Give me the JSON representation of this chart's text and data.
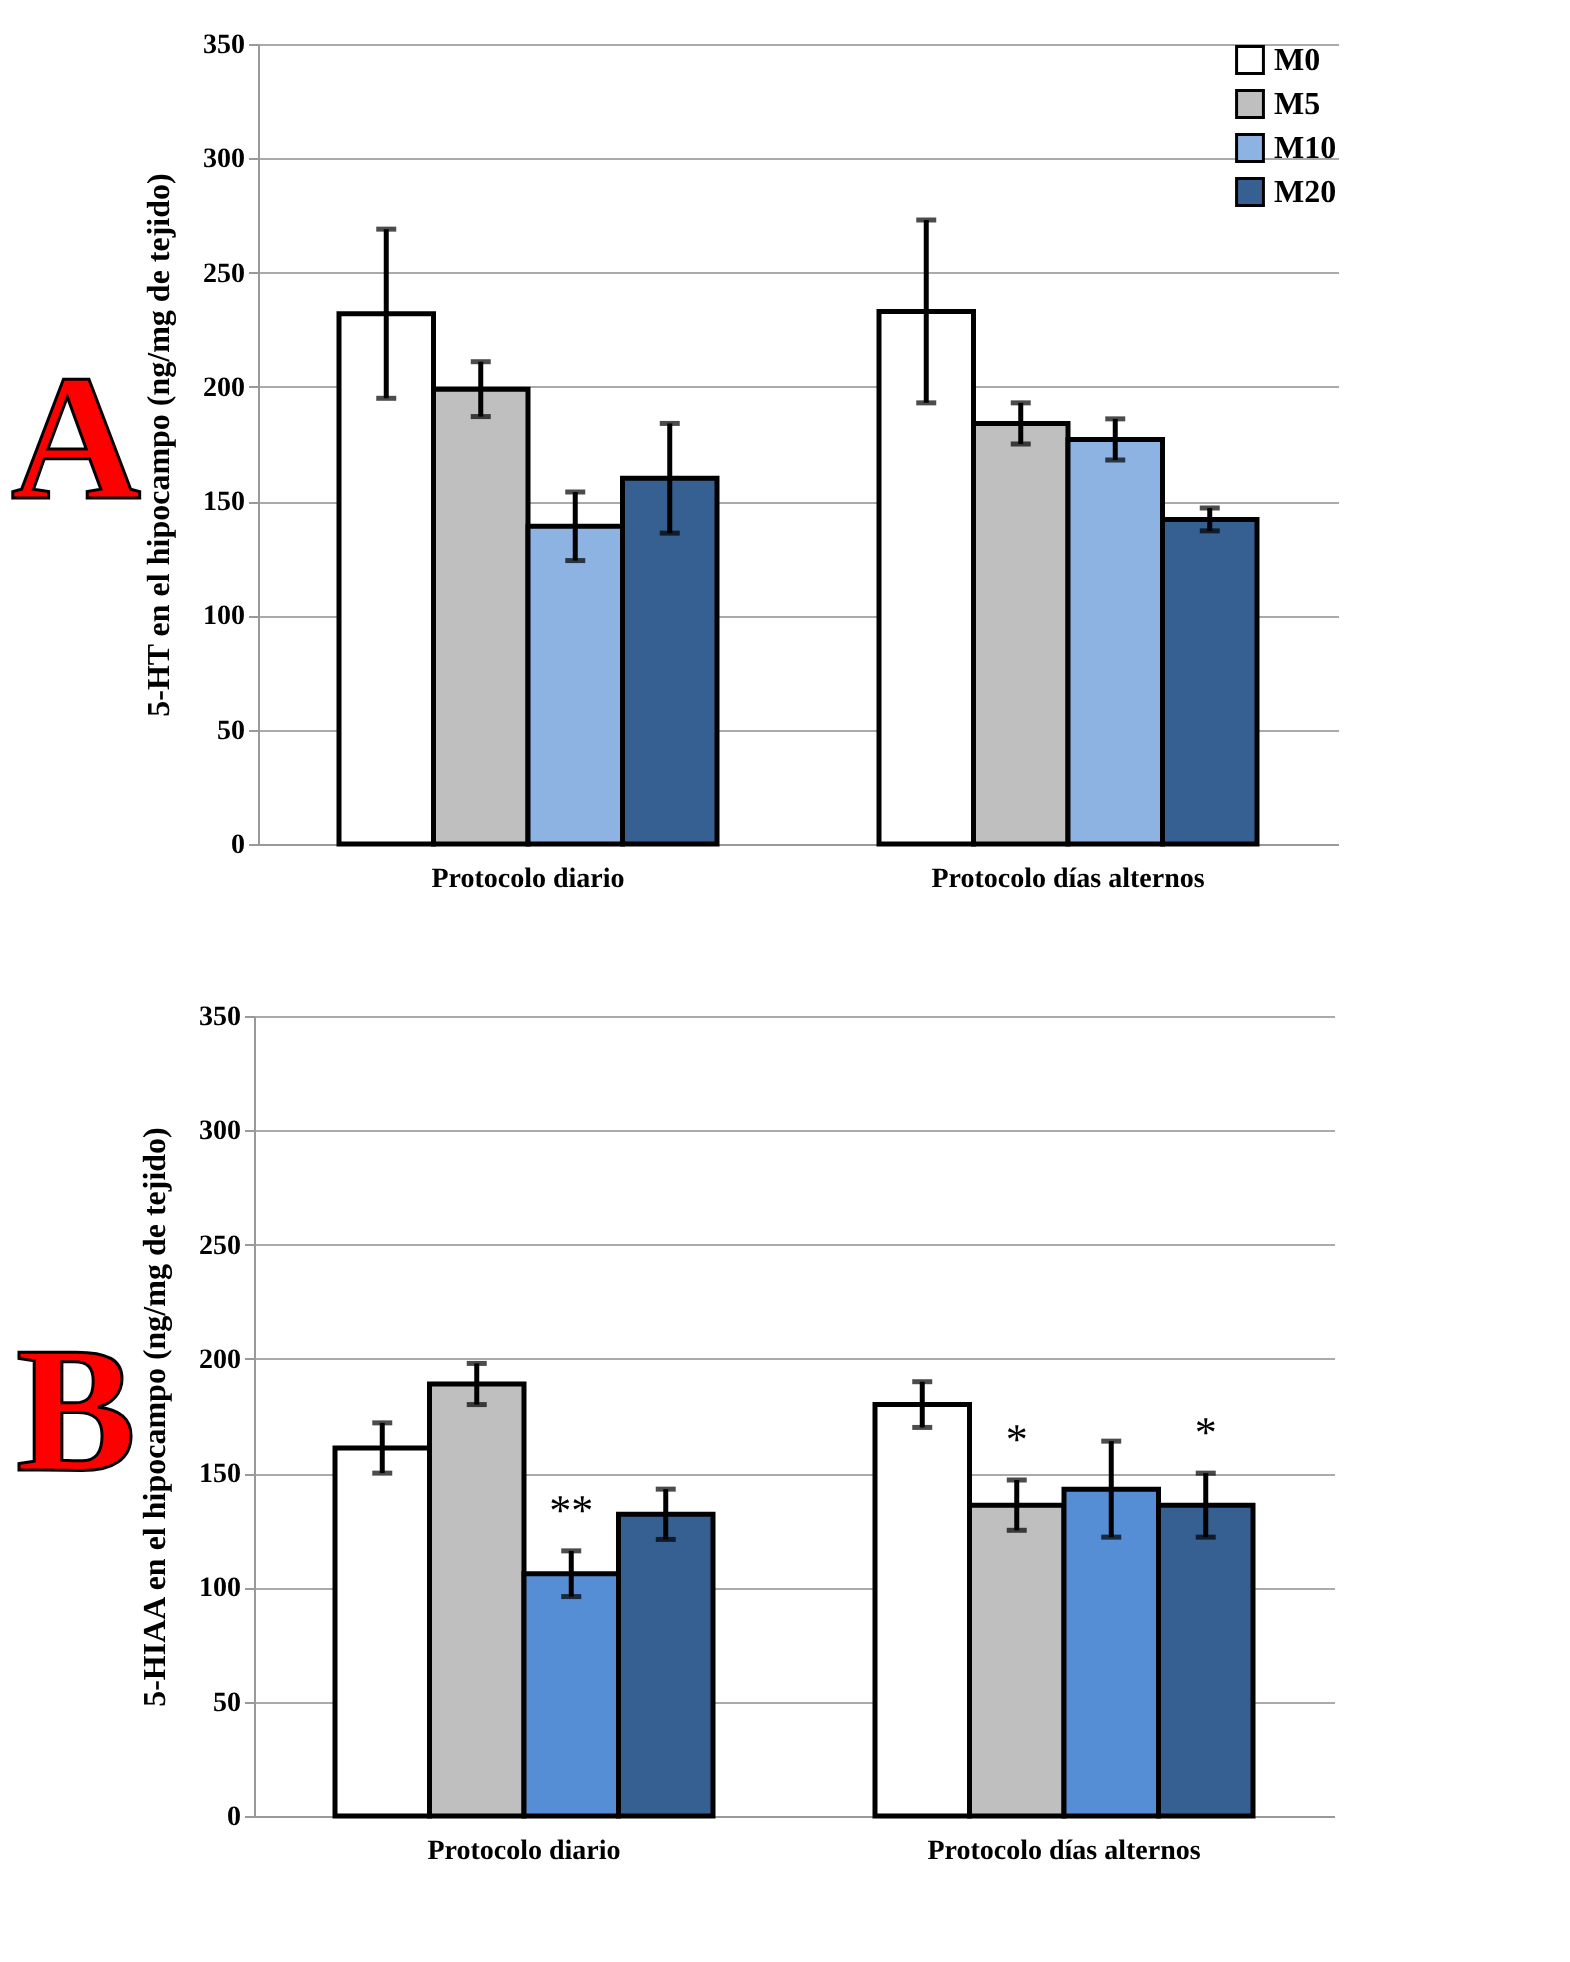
{
  "chart_data": [
    {
      "type": "bar",
      "annotations": [
        "A"
      ],
      "ylabel": "5-HT en el hipocampo (ng/mg de tejido)",
      "categories": [
        "Protocolo diario",
        "Protocolo días alternos"
      ],
      "ylim": [
        0,
        350
      ],
      "yticks": [
        0,
        50,
        100,
        150,
        200,
        250,
        300,
        350
      ],
      "grid": "y",
      "legend": "top right",
      "series": [
        {
          "name": "M0",
          "color": "#ffffff",
          "values": [
            232,
            233
          ],
          "errors": [
            37,
            40
          ]
        },
        {
          "name": "M5",
          "color": "#bfbfbf",
          "values": [
            199,
            184
          ],
          "errors": [
            12,
            9
          ]
        },
        {
          "name": "M10",
          "color": "#8db3e2",
          "values": [
            139,
            177
          ],
          "errors": [
            15,
            9
          ]
        },
        {
          "name": "M20",
          "color": "#376092",
          "values": [
            160,
            142
          ],
          "errors": [
            24,
            5
          ]
        }
      ]
    },
    {
      "type": "bar",
      "annotations": [
        "B"
      ],
      "ylabel": "5-HIAA en el hipocampo (ng/mg de tejido)",
      "categories": [
        "Protocolo diario",
        "Protocolo días alternos"
      ],
      "ylim": [
        0,
        350
      ],
      "yticks": [
        0,
        50,
        100,
        150,
        200,
        250,
        300,
        350
      ],
      "grid": "y",
      "series": [
        {
          "color": "#ffffff",
          "values": [
            161,
            180
          ],
          "errors": [
            11,
            10
          ]
        },
        {
          "color": "#bfbfbf",
          "values": [
            189,
            136
          ],
          "errors": [
            9,
            11
          ],
          "value_labels": [
            null,
            "*"
          ]
        },
        {
          "color": "#558ed5",
          "values": [
            106,
            143
          ],
          "errors": [
            10,
            21
          ],
          "value_labels": [
            "**",
            null
          ]
        },
        {
          "color": "#376092",
          "values": [
            132,
            136
          ],
          "errors": [
            11,
            14
          ],
          "value_labels": [
            null,
            "*"
          ]
        }
      ]
    }
  ]
}
